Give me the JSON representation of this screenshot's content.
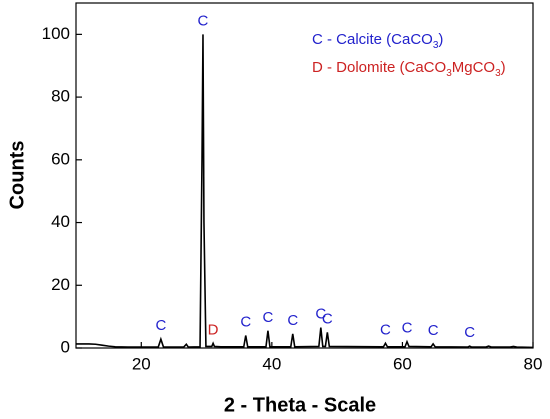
{
  "chart_data": {
    "type": "line",
    "xlabel": "2 - Theta - Scale",
    "ylabel": "Counts",
    "xlim": [
      10,
      80
    ],
    "xticks": [
      20,
      40,
      60,
      80
    ],
    "ylim": [
      0,
      110
    ],
    "yticks": [
      0,
      20,
      40,
      60,
      80,
      100
    ],
    "series": [
      {
        "color": "#000000",
        "x": [
          10,
          12,
          13,
          14,
          15,
          16,
          18,
          22.6,
          23.0,
          23.4,
          26.5,
          26.9,
          27.2,
          29.0,
          29.3,
          29.45,
          29.6,
          29.9,
          30.8,
          31.0,
          31.2,
          32.2,
          35.7,
          36.0,
          36.3,
          39.1,
          39.4,
          39.7,
          42.9,
          43.2,
          43.5,
          47.2,
          47.5,
          47.8,
          48.2,
          48.5,
          48.8,
          57.1,
          57.4,
          57.7,
          60.4,
          60.7,
          61.0,
          64.4,
          64.7,
          65.0,
          70.0,
          70.3,
          70.6,
          72.8,
          73.2,
          73.6,
          76.5,
          77.0,
          77.5,
          80
        ],
        "values": [
          1.3,
          1.3,
          1.2,
          0.9,
          0.6,
          0.4,
          0.3,
          0.3,
          2.8,
          0.3,
          0.3,
          1.2,
          0.3,
          0.4,
          60,
          100,
          40,
          0.5,
          0.5,
          1.5,
          0.5,
          0.4,
          0.4,
          4,
          0.4,
          0.4,
          5.5,
          0.4,
          0.4,
          4.5,
          0.4,
          0.5,
          6.5,
          0.5,
          0.5,
          5,
          0.5,
          0.4,
          1.5,
          0.4,
          0.4,
          2,
          0.5,
          0.4,
          1.3,
          0.4,
          0.3,
          0.6,
          0.3,
          0.3,
          0.6,
          0.3,
          0.3,
          0.5,
          0.3,
          0.2
        ]
      }
    ],
    "annotations": [
      {
        "text": "C",
        "x": 23.0,
        "color": "#2222cc"
      },
      {
        "text": "C",
        "x": 29.45,
        "color": "#2222cc"
      },
      {
        "text": "D",
        "x": 31.0,
        "color": "#cc2222"
      },
      {
        "text": "C",
        "x": 36.0,
        "color": "#2222cc"
      },
      {
        "text": "C",
        "x": 39.4,
        "color": "#2222cc"
      },
      {
        "text": "C",
        "x": 43.2,
        "color": "#2222cc"
      },
      {
        "text": "C",
        "x": 47.5,
        "color": "#2222cc"
      },
      {
        "text": "C",
        "x": 48.5,
        "color": "#2222cc"
      },
      {
        "text": "C",
        "x": 57.4,
        "color": "#2222cc"
      },
      {
        "text": "C",
        "x": 60.7,
        "color": "#2222cc"
      },
      {
        "text": "C",
        "x": 64.7,
        "color": "#2222cc"
      },
      {
        "text": "C",
        "x": 70.3,
        "color": "#2222cc"
      }
    ],
    "legend_notes": [
      {
        "text": [
          "C - Calcite (CaCO",
          "3",
          ")"
        ],
        "color": "#2222cc"
      },
      {
        "text": [
          "D - Dolomite (CaCO",
          "3",
          "MgCO",
          "3",
          ")"
        ],
        "color": "#cc2222"
      }
    ]
  }
}
